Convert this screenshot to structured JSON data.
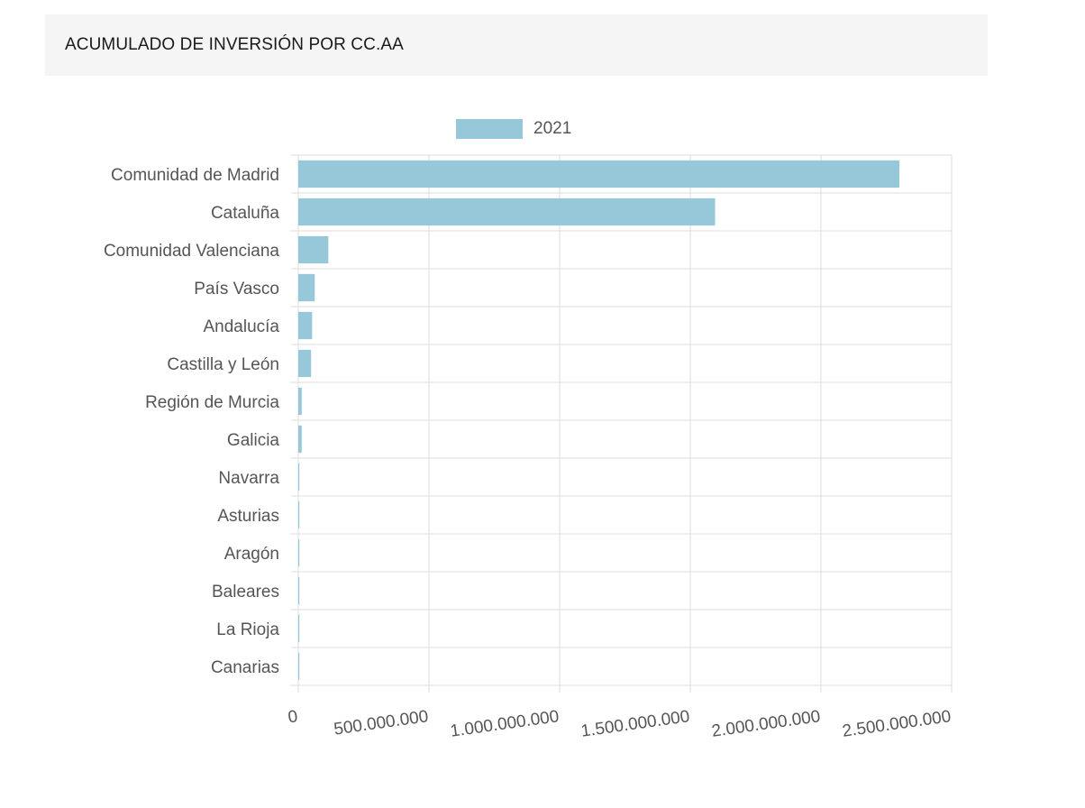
{
  "header": {
    "title": "ACUMULADO DE INVERSIÓN POR CC.AA"
  },
  "colors": {
    "bar": "#96c8da",
    "grid": "#dcdcdc",
    "axis_text": "#555555"
  },
  "chart_data": {
    "type": "bar",
    "orientation": "horizontal",
    "categories": [
      "Comunidad de Madrid",
      "Cataluña",
      "Comunidad Valenciana",
      "País Vasco",
      "Andalucía",
      "Castilla y León",
      "Región de Murcia",
      "Galicia",
      "Navarra",
      "Asturias",
      "Aragón",
      "Baleares",
      "La Rioja",
      "Canarias"
    ],
    "series": [
      {
        "name": "2021",
        "values": [
          2300000000,
          1595000000,
          115000000,
          63000000,
          53000000,
          49000000,
          13000000,
          13000000,
          3000000,
          1500000,
          1500000,
          1500000,
          1000000,
          1000000
        ]
      }
    ],
    "x_ticks": [
      "0",
      "500.000.000",
      "1.000.000.000",
      "1.500.000.000",
      "2.000.000.000",
      "2.500.000.000"
    ],
    "xlim": [
      0,
      2500000000
    ],
    "grid": true,
    "legend_position": "top"
  }
}
